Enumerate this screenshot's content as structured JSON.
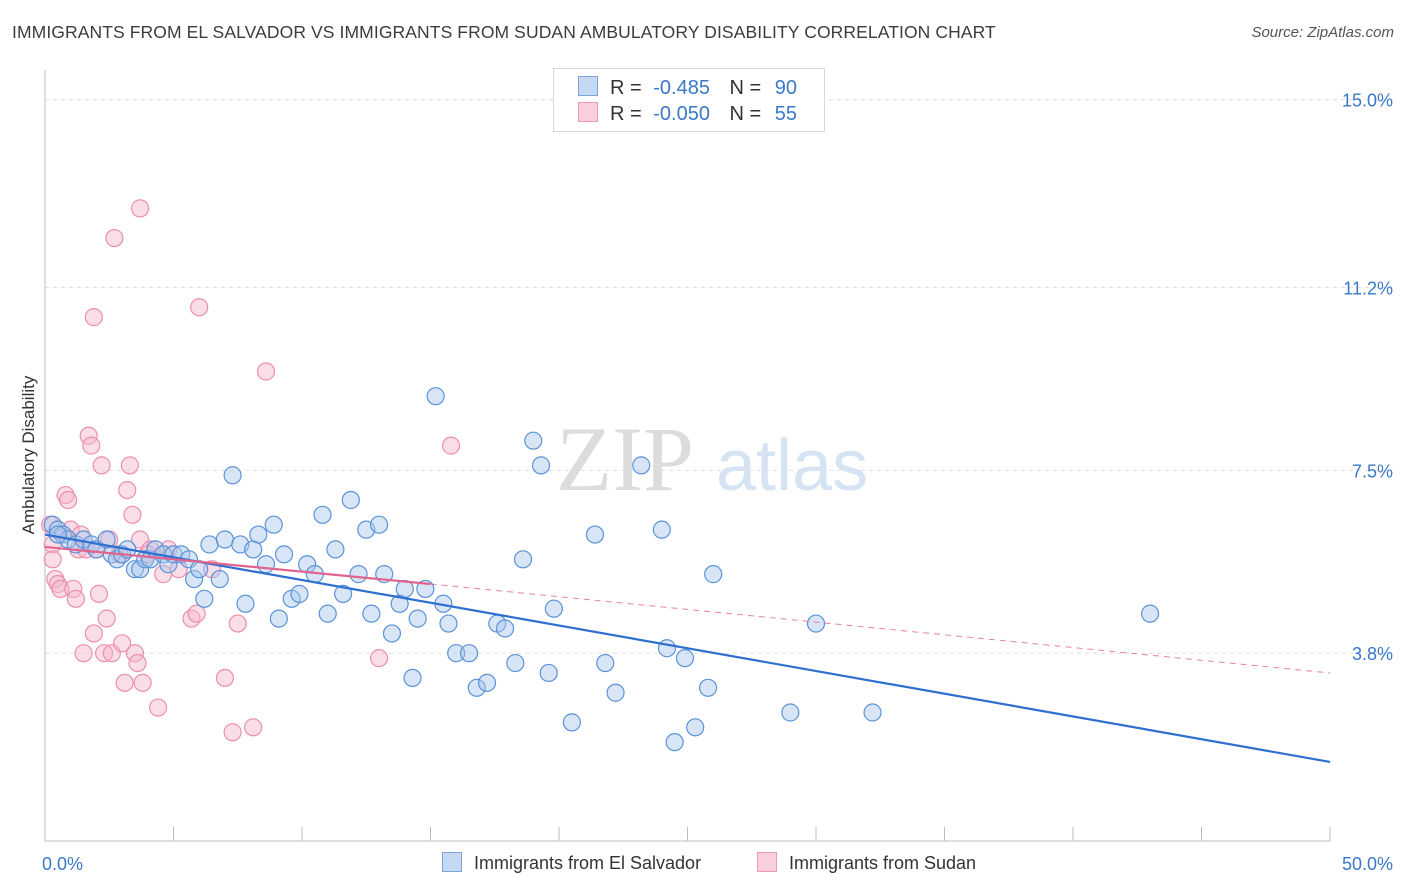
{
  "header": {
    "title": "IMMIGRANTS FROM EL SALVADOR VS IMMIGRANTS FROM SUDAN AMBULATORY DISABILITY CORRELATION CHART",
    "source": "Source: ZipAtlas.com"
  },
  "watermark": {
    "zip": "ZIP",
    "atlas": "atlas"
  },
  "legend": {
    "rows": [
      {
        "r_label": "R =",
        "r_value": "-0.485",
        "n_label": "N =",
        "n_value": "90",
        "color": "#a9c6ec"
      },
      {
        "r_label": "R =",
        "r_value": "-0.050",
        "n_label": "N =",
        "n_value": "55",
        "color": "#f4b5c9"
      }
    ]
  },
  "bottom_legend": {
    "items": [
      {
        "label": "Immigrants from El Salvador",
        "color": "#a9c6ec"
      },
      {
        "label": "Immigrants from Sudan",
        "color": "#f4b5c9"
      }
    ]
  },
  "chart_data": {
    "type": "scatter",
    "title": "IMMIGRANTS FROM EL SALVADOR VS IMMIGRANTS FROM SUDAN AMBULATORY DISABILITY CORRELATION CHART",
    "xlabel": "",
    "ylabel": "Ambulatory Disability",
    "xlim": [
      0,
      50
    ],
    "ylim": [
      0,
      15.6
    ],
    "x_tick_labels": [
      "0.0%",
      "50.0%"
    ],
    "y_ticks": [
      3.8,
      7.5,
      11.2,
      15.0
    ],
    "y_tick_labels": [
      "3.8%",
      "7.5%",
      "11.2%",
      "15.0%"
    ],
    "grid": true,
    "legend_position": "top-center",
    "colors": {
      "el_salvador": "#5b93d8",
      "sudan": "#ec8eaf",
      "trend_el_salvador": "#2e6fd0",
      "trend_sudan": "#e0648e"
    },
    "series": [
      {
        "name": "Immigrants from El Salvador",
        "trend": {
          "x": [
            0,
            50
          ],
          "y": [
            6.2,
            1.6
          ]
        },
        "points": [
          [
            0.3,
            6.4
          ],
          [
            0.5,
            6.3
          ],
          [
            0.7,
            6.2
          ],
          [
            0.9,
            6.1
          ],
          [
            1.2,
            6.0
          ],
          [
            1.5,
            6.1
          ],
          [
            1.8,
            6.0
          ],
          [
            2.0,
            5.9
          ],
          [
            2.4,
            6.1
          ],
          [
            2.6,
            5.8
          ],
          [
            2.8,
            5.7
          ],
          [
            3.0,
            5.8
          ],
          [
            3.2,
            5.9
          ],
          [
            3.5,
            5.5
          ],
          [
            3.7,
            5.5
          ],
          [
            3.9,
            5.7
          ],
          [
            4.1,
            5.7
          ],
          [
            4.3,
            5.9
          ],
          [
            4.6,
            5.8
          ],
          [
            4.8,
            5.6
          ],
          [
            5.0,
            5.8
          ],
          [
            5.3,
            5.8
          ],
          [
            5.6,
            5.7
          ],
          [
            5.8,
            5.3
          ],
          [
            6.0,
            5.5
          ],
          [
            6.2,
            4.9
          ],
          [
            6.4,
            6.0
          ],
          [
            6.8,
            5.3
          ],
          [
            7.0,
            6.1
          ],
          [
            7.3,
            7.4
          ],
          [
            7.6,
            6.0
          ],
          [
            7.8,
            4.8
          ],
          [
            8.1,
            5.9
          ],
          [
            8.3,
            6.2
          ],
          [
            8.6,
            5.6
          ],
          [
            8.9,
            6.4
          ],
          [
            9.1,
            4.5
          ],
          [
            9.3,
            5.8
          ],
          [
            9.6,
            4.9
          ],
          [
            9.9,
            5.0
          ],
          [
            10.2,
            5.6
          ],
          [
            10.5,
            5.4
          ],
          [
            10.8,
            6.6
          ],
          [
            11.0,
            4.6
          ],
          [
            11.3,
            5.9
          ],
          [
            11.6,
            5.0
          ],
          [
            11.9,
            6.9
          ],
          [
            12.2,
            5.4
          ],
          [
            12.5,
            6.3
          ],
          [
            12.7,
            4.6
          ],
          [
            13.0,
            6.4
          ],
          [
            13.2,
            5.4
          ],
          [
            13.5,
            4.2
          ],
          [
            13.8,
            4.8
          ],
          [
            14.0,
            5.1
          ],
          [
            14.3,
            3.3
          ],
          [
            14.5,
            4.5
          ],
          [
            14.8,
            5.1
          ],
          [
            15.2,
            9.0
          ],
          [
            15.5,
            4.8
          ],
          [
            15.7,
            4.4
          ],
          [
            16.0,
            3.8
          ],
          [
            16.5,
            3.8
          ],
          [
            16.8,
            3.1
          ],
          [
            17.2,
            3.2
          ],
          [
            17.6,
            4.4
          ],
          [
            17.9,
            4.3
          ],
          [
            18.3,
            3.6
          ],
          [
            18.6,
            5.7
          ],
          [
            19.0,
            8.1
          ],
          [
            19.3,
            7.6
          ],
          [
            19.6,
            3.4
          ],
          [
            19.8,
            4.7
          ],
          [
            20.5,
            2.4
          ],
          [
            21.4,
            6.2
          ],
          [
            21.8,
            3.6
          ],
          [
            22.2,
            3.0
          ],
          [
            23.2,
            7.6
          ],
          [
            24.0,
            6.3
          ],
          [
            24.2,
            3.9
          ],
          [
            24.5,
            2.0
          ],
          [
            24.9,
            3.7
          ],
          [
            25.3,
            2.3
          ],
          [
            25.8,
            3.1
          ],
          [
            26.0,
            5.4
          ],
          [
            29.0,
            2.6
          ],
          [
            30.0,
            4.4
          ],
          [
            32.2,
            2.6
          ],
          [
            43.0,
            4.6
          ],
          [
            0.5,
            6.2
          ]
        ]
      },
      {
        "name": "Immigrants from Sudan",
        "trend": {
          "x": [
            0,
            15
          ],
          "y": [
            5.95,
            5.2
          ]
        },
        "trend_extension": {
          "x": [
            15,
            50
          ],
          "y": [
            5.2,
            3.4
          ]
        },
        "points": [
          [
            0.2,
            6.4
          ],
          [
            0.3,
            6.0
          ],
          [
            0.3,
            5.7
          ],
          [
            0.4,
            5.3
          ],
          [
            0.5,
            5.2
          ],
          [
            0.6,
            5.1
          ],
          [
            0.7,
            6.2
          ],
          [
            0.8,
            7.0
          ],
          [
            0.9,
            6.9
          ],
          [
            1.0,
            6.3
          ],
          [
            1.1,
            5.1
          ],
          [
            1.2,
            4.9
          ],
          [
            1.3,
            5.9
          ],
          [
            1.4,
            6.2
          ],
          [
            1.5,
            3.8
          ],
          [
            1.6,
            5.9
          ],
          [
            1.7,
            8.2
          ],
          [
            1.8,
            8.0
          ],
          [
            1.9,
            4.2
          ],
          [
            1.9,
            10.6
          ],
          [
            2.0,
            5.9
          ],
          [
            2.1,
            5.0
          ],
          [
            2.2,
            7.6
          ],
          [
            2.3,
            3.8
          ],
          [
            2.4,
            4.5
          ],
          [
            2.5,
            6.1
          ],
          [
            2.6,
            3.8
          ],
          [
            2.7,
            12.2
          ],
          [
            2.9,
            5.8
          ],
          [
            3.0,
            4.0
          ],
          [
            3.1,
            3.2
          ],
          [
            3.2,
            7.1
          ],
          [
            3.3,
            7.6
          ],
          [
            3.4,
            6.6
          ],
          [
            3.5,
            3.8
          ],
          [
            3.6,
            3.6
          ],
          [
            3.7,
            6.1
          ],
          [
            3.8,
            3.2
          ],
          [
            4.0,
            5.8
          ],
          [
            4.1,
            5.9
          ],
          [
            4.4,
            2.7
          ],
          [
            4.6,
            5.4
          ],
          [
            4.8,
            5.9
          ],
          [
            5.2,
            5.5
          ],
          [
            5.7,
            4.5
          ],
          [
            5.9,
            4.6
          ],
          [
            6.0,
            10.8
          ],
          [
            6.5,
            5.5
          ],
          [
            7.0,
            3.3
          ],
          [
            7.3,
            2.2
          ],
          [
            7.5,
            4.4
          ],
          [
            8.1,
            2.3
          ],
          [
            8.6,
            9.5
          ],
          [
            13.0,
            3.7
          ],
          [
            15.8,
            8.0
          ]
        ],
        "extra_points": [
          [
            3.7,
            12.8
          ]
        ]
      }
    ]
  }
}
